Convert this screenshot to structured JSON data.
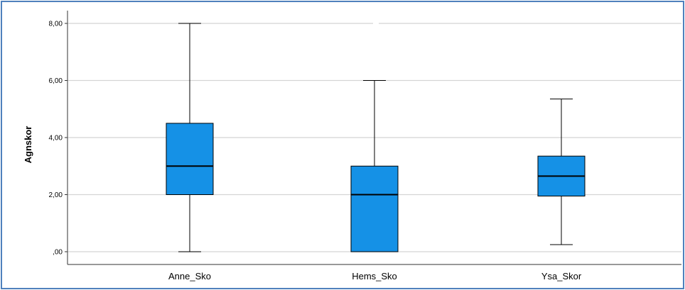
{
  "chart_data": {
    "type": "boxplot",
    "title": "",
    "xlabel": "",
    "ylabel": "Agnskor",
    "ylim": [
      0,
      8
    ],
    "yticks": [
      {
        "value": 0,
        "label": ",00"
      },
      {
        "value": 2,
        "label": "2,00"
      },
      {
        "value": 4,
        "label": "4,00"
      },
      {
        "value": 6,
        "label": "6,00"
      },
      {
        "value": 8,
        "label": "8,00"
      }
    ],
    "grid": true,
    "box_color": "#1591e6",
    "categories": [
      "Anne_Sko",
      "Hems_Sko",
      "Ysa_Skor"
    ],
    "boxes": [
      {
        "name": "Anne_Sko",
        "min": 0,
        "q1": 2,
        "median": 3,
        "q3": 4.5,
        "max": 8
      },
      {
        "name": "Hems_Sko",
        "min": 0,
        "q1": 0,
        "median": 2,
        "q3": 3,
        "max": 6
      },
      {
        "name": "Ysa_Skor",
        "min": 0.25,
        "q1": 1.95,
        "median": 2.65,
        "q3": 3.35,
        "max": 5.35
      }
    ]
  }
}
